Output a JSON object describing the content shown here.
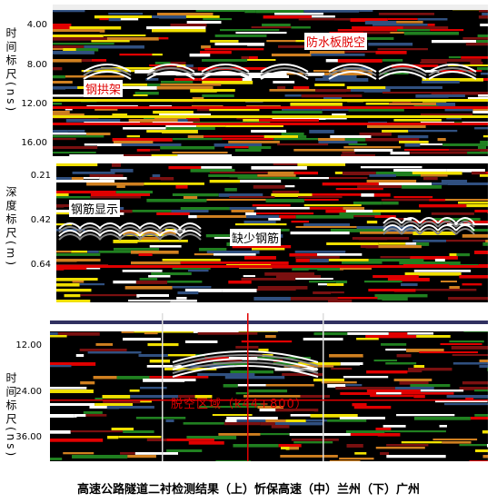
{
  "panels": [
    {
      "axis_label": "时间标尺(ns)",
      "ticks": [
        "4.00",
        "8.00",
        "12.00",
        "16.00"
      ],
      "annotations": [
        "防水板脱空",
        "钢拱架"
      ]
    },
    {
      "axis_label": "深度标尺(m)",
      "ticks": [
        "0.21",
        "0.42",
        "0.64"
      ],
      "annotations": [
        "钢筋显示",
        "缺少钢筋"
      ]
    },
    {
      "axis_label": "时间标尺(ns)",
      "ticks": [
        "12.00",
        "24.00",
        "36.00"
      ],
      "annotations": [
        "脱空区域（k44+800）"
      ]
    }
  ],
  "caption": "高速公路隧道二衬检测结果（上）忻保高速（中）兰州（下）广州"
}
